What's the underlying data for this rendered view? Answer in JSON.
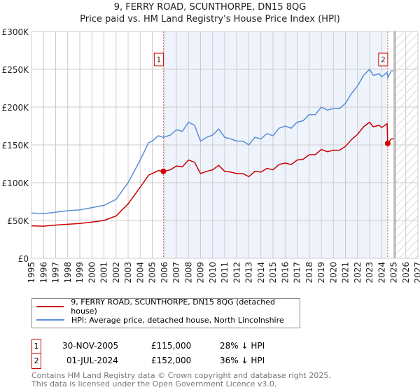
{
  "chart_data": {
    "type": "line",
    "title": "9, FERRY ROAD, SCUNTHORPE, DN15 8QG",
    "subtitle": "Price paid vs. HM Land Registry's House Price Index (HPI)",
    "xlim": [
      1995,
      2027
    ],
    "ylim": [
      0,
      300000
    ],
    "x_ticks": [
      "1995",
      "1996",
      "1997",
      "1998",
      "1999",
      "2000",
      "2001",
      "2002",
      "2003",
      "2004",
      "2005",
      "2006",
      "2007",
      "2008",
      "2009",
      "2010",
      "2011",
      "2012",
      "2013",
      "2014",
      "2015",
      "2016",
      "2017",
      "2018",
      "2019",
      "2020",
      "2021",
      "2022",
      "2023",
      "2024",
      "2025",
      "2026",
      "2027"
    ],
    "y_ticks": [
      {
        "v": 0,
        "label": "£0"
      },
      {
        "v": 50000,
        "label": "£50K"
      },
      {
        "v": 100000,
        "label": "£100K"
      },
      {
        "v": 150000,
        "label": "£150K"
      },
      {
        "v": 200000,
        "label": "£200K"
      },
      {
        "v": 250000,
        "label": "£250K"
      },
      {
        "v": 300000,
        "label": "£300K"
      }
    ],
    "grid": true,
    "shaded_period": [
      2005.92,
      2024.5
    ],
    "forecast_hatch_from": 2025.1,
    "series": [
      {
        "name": "9, FERRY ROAD, SCUNTHORPE, DN15 8QG (detached house)",
        "color": "#cc0000",
        "x": [
          1995,
          1996,
          1997,
          1998,
          1999,
          2000,
          2001,
          2002,
          2003,
          2004,
          2004.7,
          2005,
          2005.5,
          2005.92,
          2006.5,
          2007,
          2007.5,
          2008,
          2008.5,
          2009,
          2009.5,
          2010,
          2010.5,
          2011,
          2011.5,
          2012,
          2012.5,
          2013,
          2013.5,
          2014,
          2014.5,
          2015,
          2015.5,
          2016,
          2016.5,
          2017,
          2017.5,
          2018,
          2018.5,
          2019,
          2019.5,
          2020,
          2020.5,
          2021,
          2021.5,
          2022,
          2022.5,
          2023,
          2023.3,
          2023.8,
          2024,
          2024.45,
          2024.5,
          2024.8,
          2025
        ],
        "y": [
          43000,
          42500,
          44000,
          45000,
          46000,
          48000,
          50000,
          56000,
          72000,
          94000,
          110000,
          112000,
          116000,
          115000,
          117000,
          122000,
          121000,
          130000,
          127000,
          112000,
          115000,
          117000,
          123000,
          115000,
          114000,
          112000,
          112000,
          108000,
          115000,
          114000,
          119000,
          117000,
          124000,
          126000,
          124000,
          130000,
          131000,
          137000,
          137000,
          144000,
          141000,
          143000,
          143000,
          148000,
          157000,
          164000,
          174000,
          180000,
          174000,
          176000,
          173000,
          178000,
          152000,
          158000,
          158000
        ]
      },
      {
        "name": "HPI: Average price, detached house, North Lincolnshire",
        "color": "#5b8ed6",
        "x": [
          1995,
          1996,
          1997,
          1998,
          1999,
          2000,
          2001,
          2002,
          2003,
          2004,
          2004.7,
          2005,
          2005.5,
          2005.92,
          2006.5,
          2007,
          2007.5,
          2008,
          2008.5,
          2009,
          2009.5,
          2010,
          2010.5,
          2011,
          2011.5,
          2012,
          2012.5,
          2013,
          2013.5,
          2014,
          2014.5,
          2015,
          2015.5,
          2016,
          2016.5,
          2017,
          2017.5,
          2018,
          2018.5,
          2019,
          2019.5,
          2020,
          2020.5,
          2021,
          2021.5,
          2022,
          2022.5,
          2023,
          2023.3,
          2023.8,
          2024,
          2024.45,
          2024.5,
          2024.8,
          2025
        ],
        "y": [
          60000,
          59000,
          61000,
          63000,
          64000,
          67000,
          70000,
          78000,
          100000,
          130000,
          153000,
          155000,
          162000,
          160000,
          163000,
          170000,
          168000,
          180000,
          176000,
          155000,
          160000,
          163000,
          171000,
          160000,
          158000,
          155000,
          155000,
          150000,
          160000,
          158000,
          165000,
          162000,
          172000,
          175000,
          172000,
          180000,
          182000,
          190000,
          190000,
          200000,
          196000,
          198000,
          198000,
          205000,
          218000,
          228000,
          242000,
          250000,
          242000,
          244000,
          240000,
          246000,
          239000,
          248000,
          248000
        ]
      }
    ],
    "markers": [
      {
        "label": "1",
        "x": 2005.92,
        "y": 115000
      },
      {
        "label": "2",
        "x": 2024.5,
        "y": 152000
      }
    ]
  },
  "legend": {
    "red": "9, FERRY ROAD, SCUNTHORPE, DN15 8QG (detached house)",
    "blue": "HPI: Average price, detached house, North Lincolnshire"
  },
  "sales": [
    {
      "num": "1",
      "date": "30-NOV-2005",
      "price": "£115,000",
      "hpi": "28% ↓ HPI"
    },
    {
      "num": "2",
      "date": "01-JUL-2024",
      "price": "£152,000",
      "hpi": "36% ↓ HPI"
    }
  ],
  "footer": {
    "line1": "Contains HM Land Registry data © Crown copyright and database right 2025.",
    "line2": "This data is licensed under the Open Government Licence v3.0."
  }
}
